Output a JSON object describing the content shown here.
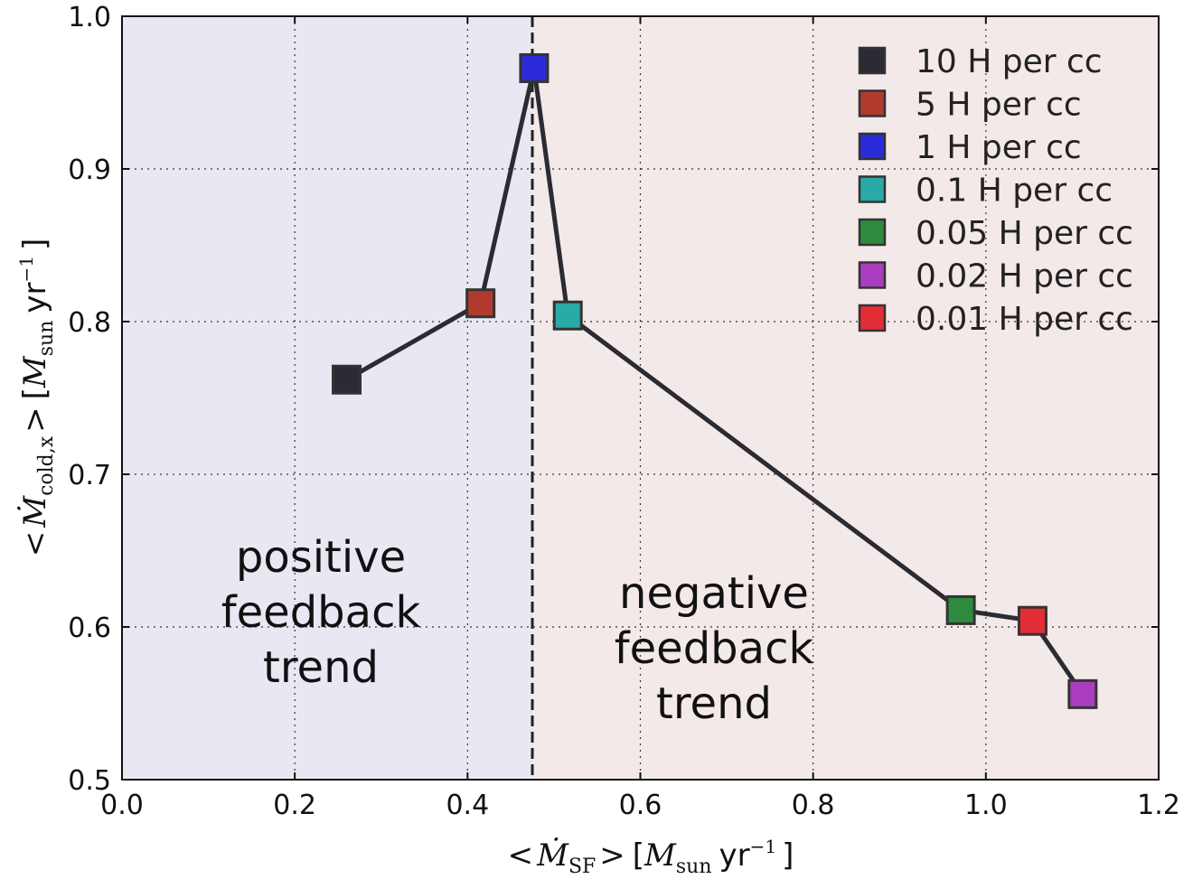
{
  "chart_data": {
    "type": "scatter",
    "xlabel": "<Ṁ_SF> [M_sun yr^-1]",
    "ylabel": "<Ṁ_cold,x> [M_sun yr^-1]",
    "xlim": [
      0.0,
      1.2
    ],
    "ylim": [
      0.5,
      1.0
    ],
    "x_ticks": [
      "0.0",
      "0.2",
      "0.4",
      "0.6",
      "0.8",
      "1.0",
      "1.2"
    ],
    "y_ticks": [
      "0.5",
      "0.6",
      "0.7",
      "0.8",
      "0.9",
      "1.0"
    ],
    "grid": true,
    "legend_position": "top-right",
    "series": [
      {
        "name": "10 H per cc",
        "x": 0.26,
        "y": 0.762,
        "color": "#2b2b33"
      },
      {
        "name": "5 H per cc",
        "x": 0.415,
        "y": 0.812,
        "color": "#b03a2e"
      },
      {
        "name": "1 H per cc",
        "x": 0.477,
        "y": 0.966,
        "color": "#2b2bd9"
      },
      {
        "name": "0.1 H per cc",
        "x": 0.516,
        "y": 0.804,
        "color": "#2aa9a9"
      },
      {
        "name": "0.05 H per cc",
        "x": 0.971,
        "y": 0.611,
        "color": "#2e8b3d"
      },
      {
        "name": "0.02 H per cc",
        "x": 1.112,
        "y": 0.556,
        "color": "#aa3dbf"
      },
      {
        "name": "0.01 H per cc",
        "x": 1.054,
        "y": 0.604,
        "color": "#e32d36"
      }
    ],
    "line_order": [
      "10 H per cc",
      "5 H per cc",
      "1 H per cc",
      "0.1 H per cc",
      "0.05 H per cc",
      "0.01 H per cc",
      "0.02 H per cc"
    ],
    "line_color": "#2b2b33",
    "threshold_x": 0.475,
    "regions": [
      {
        "lines": [
          "positive",
          "feedback",
          "trend"
        ],
        "color": "#e8e8f3"
      },
      {
        "lines": [
          "negative",
          "feedback",
          "trend"
        ],
        "color": "#f3e9e9"
      }
    ]
  }
}
